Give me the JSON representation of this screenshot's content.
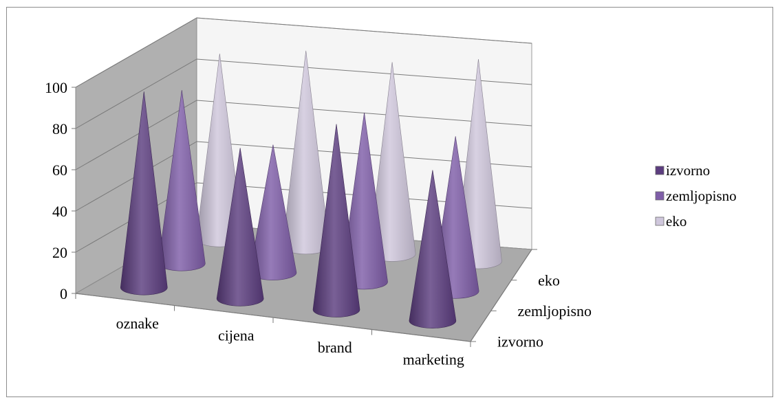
{
  "chart_data": {
    "type": "bar",
    "shape": "cone-3d",
    "categories": [
      "oznake",
      "cijena",
      "brand",
      "marketing"
    ],
    "series": [
      {
        "name": "izvorno",
        "values": [
          95,
          73,
          90,
          73
        ],
        "color": "#5c3d7f"
      },
      {
        "name": "zemljopisno",
        "values": [
          84,
          62,
          82,
          75
        ],
        "color": "#7f5ea8"
      },
      {
        "name": "eko",
        "values": [
          90,
          95,
          93,
          98
        ],
        "color": "#cfc7dc"
      }
    ],
    "depth_labels": [
      "izvorno",
      "zemljopisno",
      "eko"
    ],
    "y_ticks": [
      "0",
      "20",
      "40",
      "60",
      "80",
      "100"
    ],
    "ylim": [
      0,
      100
    ],
    "grid": true,
    "legend_position": "right"
  }
}
